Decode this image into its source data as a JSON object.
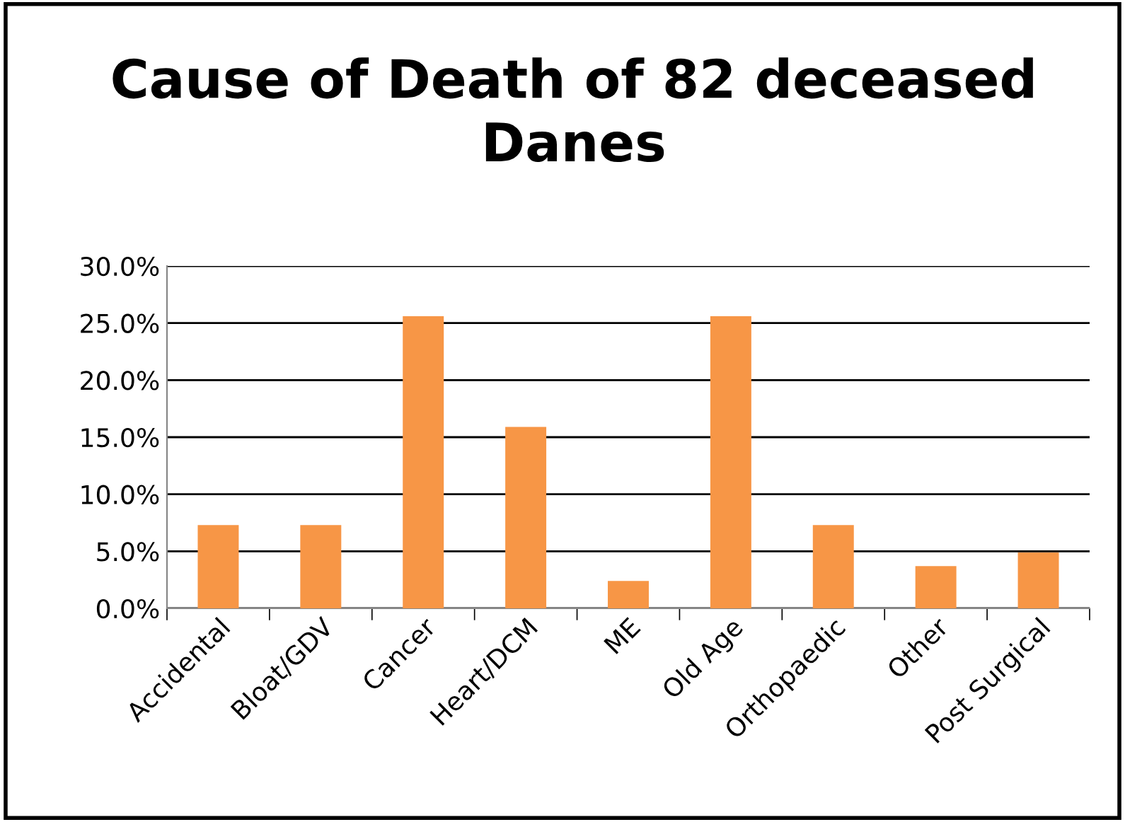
{
  "chart_data": {
    "type": "bar",
    "title": "Cause of Death of 82 deceased Danes",
    "categories": [
      "Accidental",
      "Bloat/GDV",
      "Cancer",
      "Heart/DCM",
      "ME",
      "Old Age",
      "Orthopaedic",
      "Other",
      "Post Surgical"
    ],
    "values": [
      7.3,
      7.3,
      25.6,
      15.9,
      2.4,
      25.6,
      7.3,
      3.7,
      4.9
    ],
    "color": "#f79646",
    "ylim": [
      0,
      30
    ],
    "yticks": [
      {
        "value": 0,
        "label": "0.0%"
      },
      {
        "value": 5,
        "label": "5.0%"
      },
      {
        "value": 10,
        "label": "10.0%"
      },
      {
        "value": 15,
        "label": "15.0%"
      },
      {
        "value": 20,
        "label": "20.0%"
      },
      {
        "value": 25,
        "label": "25.0%"
      },
      {
        "value": 30,
        "label": "30.0%"
      }
    ],
    "grid": "y",
    "legend": false
  }
}
